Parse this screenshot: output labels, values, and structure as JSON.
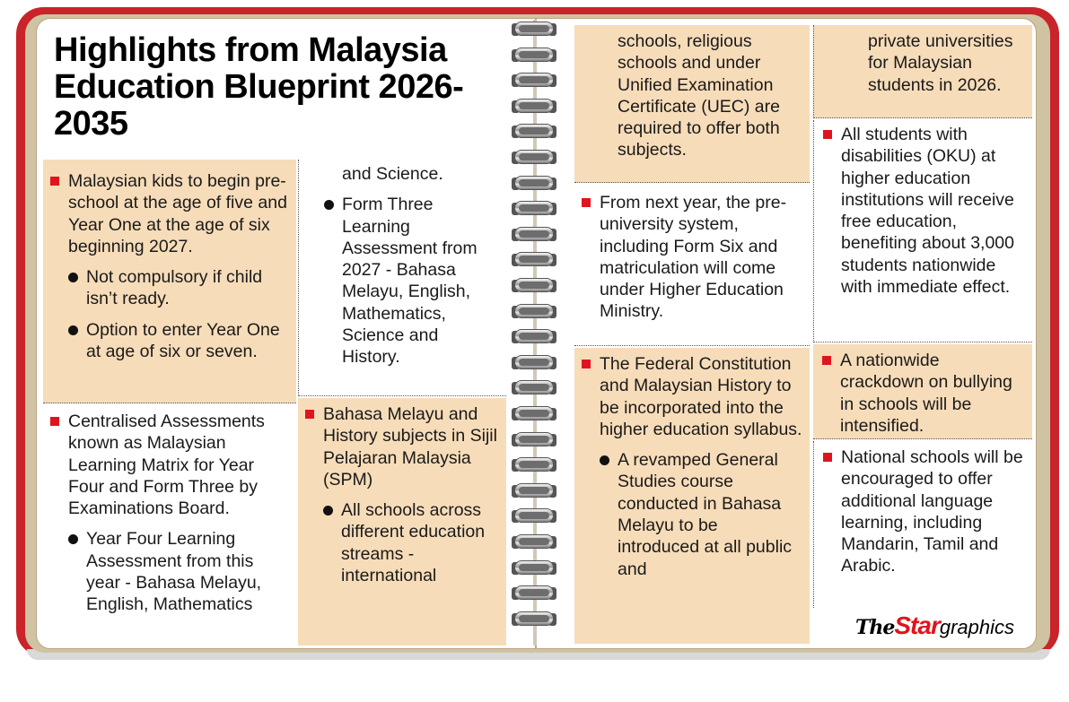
{
  "title": "Highlights from Malaysia Education Blueprint 2026-2035",
  "col1": {
    "b1": {
      "text": "Malaysian kids to begin pre-school at the age of five and Year One at the age of six beginning 2027.",
      "subs": [
        "Not compulsory if child isn’t ready.",
        "Option to enter Year One at age of six or seven."
      ]
    },
    "b2": {
      "text": "Centralised Assessments known as Malaysian Learning Matrix for Year Four and Form Three by Examinations Board.",
      "sub1": "Year Four Learning Assessment from this year - Bahasa Melayu, English, Mathematics"
    }
  },
  "col2": {
    "cont": "and Science.",
    "sub2": "Form Three Learning Assessment from 2027 - Bahasa Melayu, English, Mathematics, Science and History.",
    "b3": {
      "text": "Bahasa Melayu and History subjects in Sijil Pelajaran Malaysia (SPM)",
      "sub": "All schools across different education streams - international"
    }
  },
  "col3": {
    "cont": "schools, religious schools and under Unified Examination Certificate (UEC) are required to offer both subjects.",
    "b4": "From next year, the pre-university system, including Form Six and matriculation will come under Higher Education Ministry.",
    "b5": {
      "text": "The Federal Constitution and Malaysian History to be incorporated into the higher education syllabus.",
      "sub": "A revamped General Studies course conducted in Bahasa Melayu to be introduced at all public and"
    }
  },
  "col4": {
    "cont": "private universities for Malaysian students in 2026.",
    "b6": "All students with disabilities (OKU) at higher education institutions will receive free education, benefiting about 3,000 students nationwide with immediate effect.",
    "b7": "A nationwide crackdown on bullying in schools will be intensified.",
    "b8": "National schools will be encouraged to offer additional language learning, including Mandarin, Tamil and Arabic."
  },
  "logo": {
    "the": "The",
    "star": "Star",
    "graphics": "graphics"
  },
  "colors": {
    "cover": "#c8242a",
    "peach": "#f7dcb9",
    "bullet": "#e0141e"
  }
}
